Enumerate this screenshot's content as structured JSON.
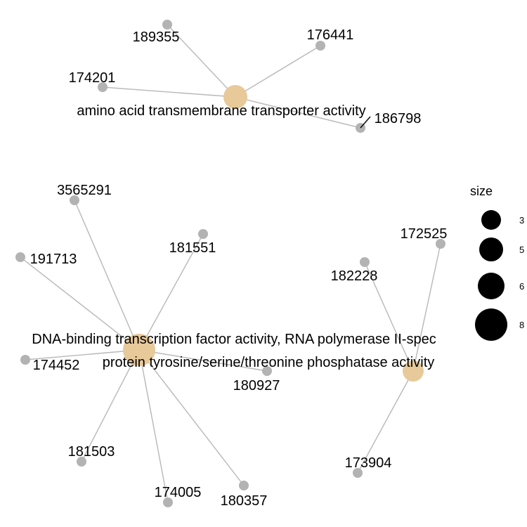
{
  "colors": {
    "category_node": "#e8c99a",
    "gene_node": "#b3b3b3",
    "edge": "#b8b8b8",
    "legend_dot": "#000000",
    "background": "#ffffff"
  },
  "categories": [
    {
      "id": "c1",
      "label": "amino acid transmembrane transporter activity",
      "size": 5
    },
    {
      "id": "c2",
      "label": "DNA-binding transcription factor activity, RNA polymerase II-spec",
      "size": 8
    },
    {
      "id": "c3",
      "label": "protein tyrosine/serine/threonine phosphatase activity",
      "size": 3
    }
  ],
  "genes": [
    {
      "id": "g189355",
      "label": "189355",
      "category": "c1"
    },
    {
      "id": "g176441",
      "label": "176441",
      "category": "c1"
    },
    {
      "id": "g174201",
      "label": "174201",
      "category": "c1"
    },
    {
      "id": "g186798",
      "label": "186798",
      "category": "c1"
    },
    {
      "id": "g3565291",
      "label": "3565291",
      "category": "c2"
    },
    {
      "id": "g191713",
      "label": "191713",
      "category": "c2"
    },
    {
      "id": "g181551",
      "label": "181551",
      "category": "c2"
    },
    {
      "id": "g174452",
      "label": "174452",
      "category": "c2"
    },
    {
      "id": "g180927",
      "label": "180927",
      "category": "c2"
    },
    {
      "id": "g181503",
      "label": "181503",
      "category": "c2"
    },
    {
      "id": "g174005",
      "label": "174005",
      "category": "c2"
    },
    {
      "id": "g180357",
      "label": "180357",
      "category": "c2"
    },
    {
      "id": "g172525",
      "label": "172525",
      "category": "c3"
    },
    {
      "id": "g182228",
      "label": "182228",
      "category": "c3"
    },
    {
      "id": "g173904",
      "label": "173904",
      "category": "c3"
    }
  ],
  "legend": {
    "title": "size",
    "entries": [
      {
        "value": 3,
        "label": "3"
      },
      {
        "value": 5,
        "label": "5"
      },
      {
        "value": 6,
        "label": "6"
      },
      {
        "value": 8,
        "label": "8"
      }
    ]
  }
}
